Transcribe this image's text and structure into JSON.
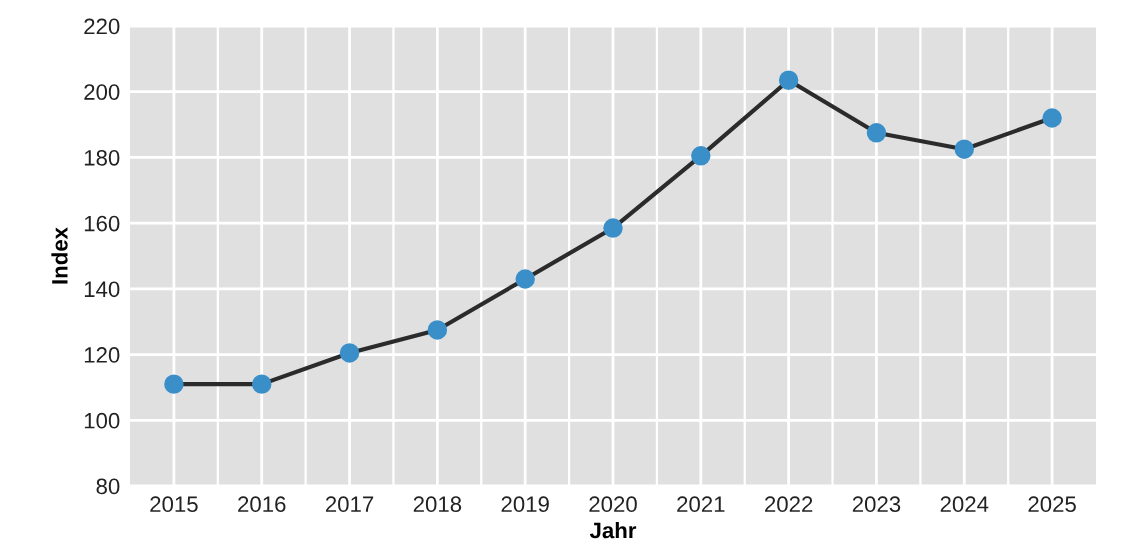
{
  "chart_data": {
    "type": "line",
    "xlabel": "Jahr",
    "ylabel": "Index",
    "categories": [
      "2015",
      "2016",
      "2017",
      "2018",
      "2019",
      "2020",
      "2021",
      "2022",
      "2023",
      "2024",
      "2025"
    ],
    "series": [
      {
        "color": "#3a8fc9",
        "values": [
          111,
          111,
          120.5,
          127.5,
          143,
          158.5,
          180.5,
          203.5,
          187.5,
          182.5,
          192
        ]
      }
    ],
    "ylim": [
      80,
      220
    ],
    "yticks": [
      80,
      100,
      120,
      140,
      160,
      180,
      200,
      220
    ],
    "grid": true,
    "marker": "circle",
    "line_style": "solid"
  }
}
